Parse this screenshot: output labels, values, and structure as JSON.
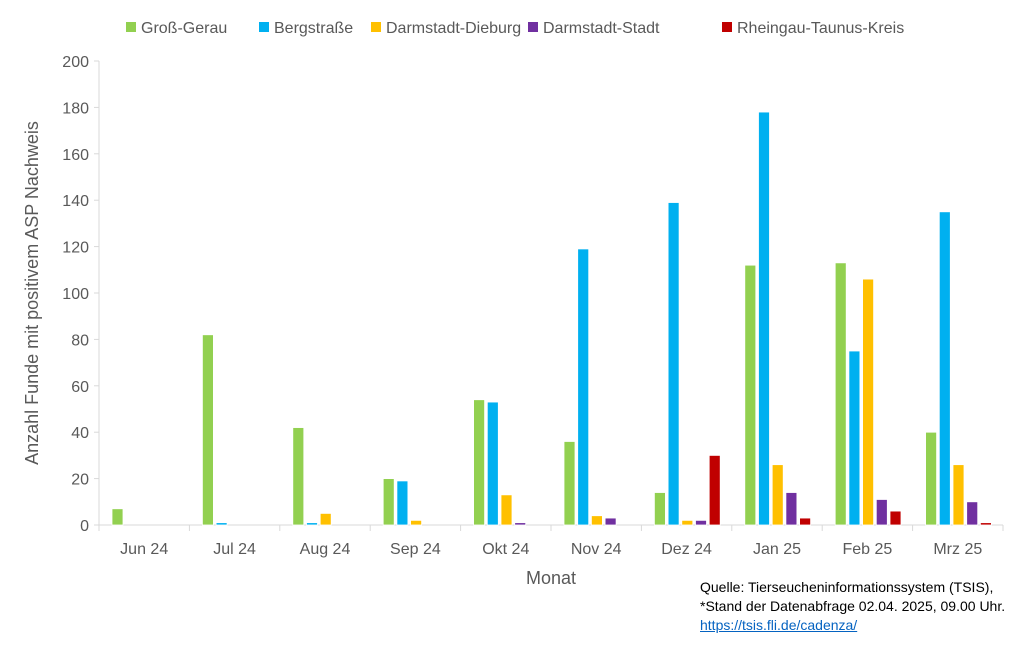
{
  "chart_data": {
    "type": "bar",
    "title": "",
    "xlabel": "Monat",
    "ylabel": "Anzahl Funde mit positivem ASP Nachweis",
    "ylim": [
      0,
      200
    ],
    "yticks": [
      0,
      20,
      40,
      60,
      80,
      100,
      120,
      140,
      160,
      180,
      200
    ],
    "grid": false,
    "legend": "top",
    "categories": [
      "Jun 24",
      "Jul 24",
      "Aug 24",
      "Sep 24",
      "Okt 24",
      "Nov 24",
      "Dez 24",
      "Jan 25",
      "Feb 25",
      "Mrz 25"
    ],
    "series": [
      {
        "name": "Groß-Gerau",
        "color": "#92d050",
        "values": [
          7,
          82,
          42,
          20,
          54,
          36,
          14,
          112,
          113,
          40
        ]
      },
      {
        "name": "Bergstraße",
        "color": "#00b0f0",
        "values": [
          0,
          1,
          1,
          19,
          53,
          119,
          139,
          178,
          75,
          135
        ]
      },
      {
        "name": "Darmstadt-Dieburg",
        "color": "#ffc000",
        "values": [
          0,
          0,
          5,
          2,
          13,
          4,
          2,
          26,
          106,
          26
        ]
      },
      {
        "name": "Darmstadt-Stadt",
        "color": "#7030a0",
        "values": [
          0,
          0,
          0,
          0,
          1,
          3,
          2,
          14,
          11,
          10
        ]
      },
      {
        "name": "Rheingau-Taunus-Kreis",
        "color": "#c00000",
        "values": [
          0,
          0,
          0,
          0,
          0,
          0,
          30,
          3,
          6,
          1
        ]
      }
    ]
  },
  "source": {
    "line1": "Quelle: Tierseucheninformationssystem (TSIS),",
    "line2": "*Stand der Datenabfrage 02.04. 2025, 09.00 Uhr.",
    "link": "https://tsis.fli.de/cadenza/"
  }
}
